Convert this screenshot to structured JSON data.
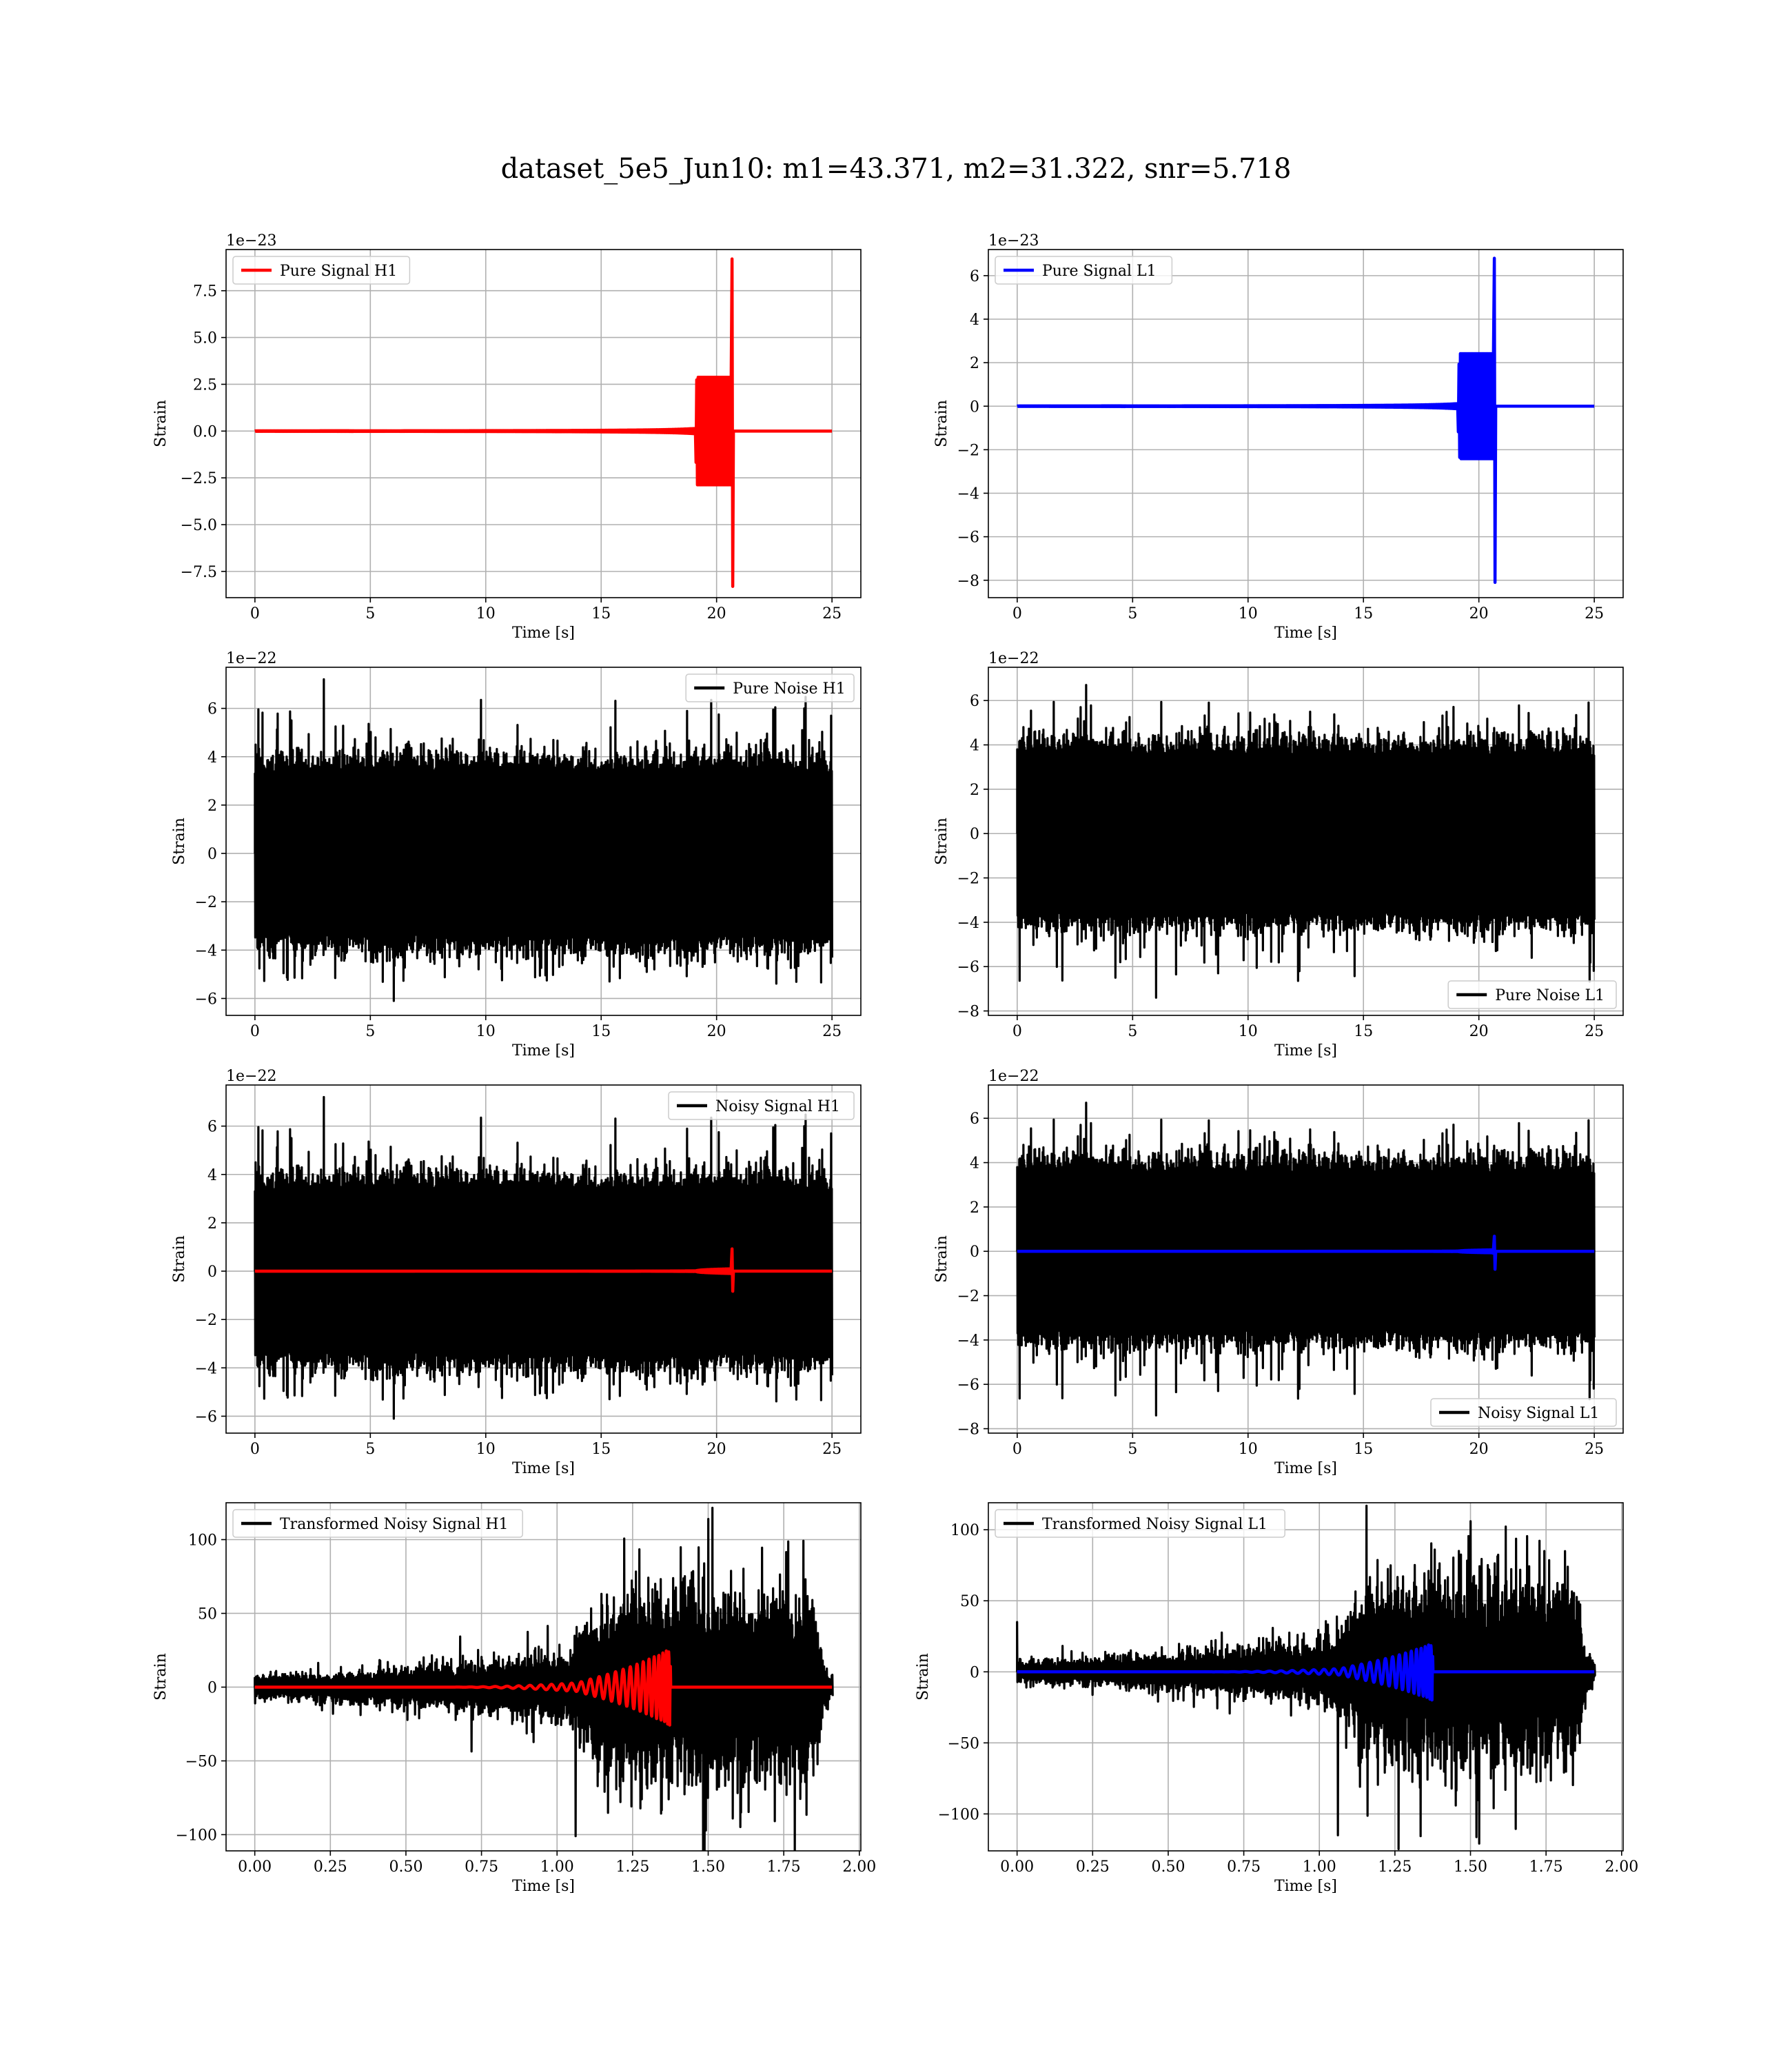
{
  "title": "dataset_5e5_Jun10: m1=43.371, m2=31.322, snr=5.718",
  "colors": {
    "h1_signal": "#ff0000",
    "l1_signal": "#0000ff",
    "noise": "#000000",
    "grid": "#b0b0b0"
  },
  "chart_data": [
    {
      "type": "line",
      "legend": "Pure Signal H1",
      "legend_loc": "upper left",
      "xlabel": "Time [s]",
      "ylabel": "Strain",
      "offset_text": "1e−23",
      "xlim": [
        -1.25,
        26.25
      ],
      "ylim": [
        -8.9,
        9.7
      ],
      "xticks": [
        0,
        5,
        10,
        15,
        20,
        25
      ],
      "xtick_labels": [
        "0",
        "5",
        "10",
        "15",
        "20",
        "25"
      ],
      "yticks": [
        -7.5,
        -5.0,
        -2.5,
        0.0,
        2.5,
        5.0,
        7.5
      ],
      "ytick_labels": [
        "−7.5",
        "−5.0",
        "−2.5",
        "0.0",
        "2.5",
        "5.0",
        "7.5"
      ],
      "grid": true,
      "series": [
        {
          "kind": "chirp",
          "color": "#ff0000",
          "t0": 0,
          "t1": 25,
          "tc": 20.7,
          "ymax": 9.2,
          "ymin": -8.3,
          "late": 2.5
        }
      ]
    },
    {
      "type": "line",
      "legend": "Pure Signal L1",
      "legend_loc": "upper left",
      "xlabel": "Time [s]",
      "ylabel": "Strain",
      "offset_text": "1e−23",
      "xlim": [
        -1.25,
        26.25
      ],
      "ylim": [
        -8.8,
        7.2
      ],
      "xticks": [
        0,
        5,
        10,
        15,
        20,
        25
      ],
      "xtick_labels": [
        "0",
        "5",
        "10",
        "15",
        "20",
        "25"
      ],
      "yticks": [
        -8,
        -6,
        -4,
        -2,
        0,
        2,
        4,
        6
      ],
      "ytick_labels": [
        "−8",
        "−6",
        "−4",
        "−2",
        "0",
        "2",
        "4",
        "6"
      ],
      "grid": true,
      "series": [
        {
          "kind": "chirp",
          "color": "#0000ff",
          "t0": 0,
          "t1": 25,
          "tc": 20.7,
          "ymax": 6.8,
          "ymin": -8.1,
          "late": 2.1
        }
      ]
    },
    {
      "type": "line",
      "legend": "Pure Noise H1",
      "legend_loc": "upper right",
      "xlabel": "Time [s]",
      "ylabel": "Strain",
      "offset_text": "1e−22",
      "xlim": [
        -1.25,
        26.25
      ],
      "ylim": [
        -6.7,
        7.7
      ],
      "xticks": [
        0,
        5,
        10,
        15,
        20,
        25
      ],
      "xtick_labels": [
        "0",
        "5",
        "10",
        "15",
        "20",
        "25"
      ],
      "yticks": [
        -6,
        -4,
        -2,
        0,
        2,
        4,
        6
      ],
      "ytick_labels": [
        "−6",
        "−4",
        "−2",
        "0",
        "2",
        "4",
        "6"
      ],
      "grid": true,
      "series": [
        {
          "kind": "noise",
          "color": "#000000",
          "t0": 0,
          "t1": 25,
          "core": 3.3,
          "max": 7.2,
          "min": -6.1,
          "seed": 11
        }
      ]
    },
    {
      "type": "line",
      "legend": "Pure Noise L1",
      "legend_loc": "lower right",
      "xlabel": "Time [s]",
      "ylabel": "Strain",
      "offset_text": "1e−22",
      "xlim": [
        -1.25,
        26.25
      ],
      "ylim": [
        -8.2,
        7.5
      ],
      "xticks": [
        0,
        5,
        10,
        15,
        20,
        25
      ],
      "xtick_labels": [
        "0",
        "5",
        "10",
        "15",
        "20",
        "25"
      ],
      "yticks": [
        -8,
        -6,
        -4,
        -2,
        0,
        2,
        4,
        6
      ],
      "ytick_labels": [
        "−8",
        "−6",
        "−4",
        "−2",
        "0",
        "2",
        "4",
        "6"
      ],
      "grid": true,
      "series": [
        {
          "kind": "noise",
          "color": "#000000",
          "t0": 0,
          "t1": 25,
          "core": 3.5,
          "max": 6.7,
          "min": -7.4,
          "seed": 23
        }
      ]
    },
    {
      "type": "line",
      "legend": "Noisy Signal H1",
      "legend_loc": "upper right",
      "xlabel": "Time [s]",
      "ylabel": "Strain",
      "offset_text": "1e−22",
      "xlim": [
        -1.25,
        26.25
      ],
      "ylim": [
        -6.7,
        7.7
      ],
      "xticks": [
        0,
        5,
        10,
        15,
        20,
        25
      ],
      "xtick_labels": [
        "0",
        "5",
        "10",
        "15",
        "20",
        "25"
      ],
      "yticks": [
        -6,
        -4,
        -2,
        0,
        2,
        4,
        6
      ],
      "ytick_labels": [
        "−6",
        "−4",
        "−2",
        "0",
        "2",
        "4",
        "6"
      ],
      "grid": true,
      "series": [
        {
          "kind": "noise",
          "color": "#000000",
          "t0": 0,
          "t1": 25,
          "core": 3.3,
          "max": 7.2,
          "min": -6.1,
          "seed": 11
        },
        {
          "kind": "chirp",
          "color": "#ff0000",
          "t0": 0,
          "t1": 25,
          "tc": 20.7,
          "ymax": 0.92,
          "ymin": -0.83,
          "late": 0.25
        }
      ]
    },
    {
      "type": "line",
      "legend": "Noisy Signal L1",
      "legend_loc": "lower right",
      "xlabel": "Time [s]",
      "ylabel": "Strain",
      "offset_text": "1e−22",
      "xlim": [
        -1.25,
        26.25
      ],
      "ylim": [
        -8.2,
        7.5
      ],
      "xticks": [
        0,
        5,
        10,
        15,
        20,
        25
      ],
      "xtick_labels": [
        "0",
        "5",
        "10",
        "15",
        "20",
        "25"
      ],
      "yticks": [
        -8,
        -6,
        -4,
        -2,
        0,
        2,
        4,
        6
      ],
      "ytick_labels": [
        "−8",
        "−6",
        "−4",
        "−2",
        "0",
        "2",
        "4",
        "6"
      ],
      "grid": true,
      "series": [
        {
          "kind": "noise",
          "color": "#000000",
          "t0": 0,
          "t1": 25,
          "core": 3.5,
          "max": 6.7,
          "min": -7.4,
          "seed": 23
        },
        {
          "kind": "chirp",
          "color": "#0000ff",
          "t0": 0,
          "t1": 25,
          "tc": 20.7,
          "ymax": 0.68,
          "ymin": -0.81,
          "late": 0.21
        }
      ]
    },
    {
      "type": "line",
      "legend": "Transformed Noisy Signal H1",
      "legend_loc": "upper left",
      "xlabel": "Time [s]",
      "ylabel": "Strain",
      "xlim": [
        -0.095,
        2.005
      ],
      "ylim": [
        -111,
        125
      ],
      "xticks": [
        0,
        0.25,
        0.5,
        0.75,
        1.0,
        1.25,
        1.5,
        1.75,
        2.0
      ],
      "xtick_labels": [
        "0.00",
        "0.25",
        "0.50",
        "0.75",
        "1.00",
        "1.25",
        "1.50",
        "1.75",
        "2.00"
      ],
      "yticks": [
        -100,
        -50,
        0,
        50,
        100
      ],
      "ytick_labels": [
        "−100",
        "−50",
        "0",
        "50",
        "100"
      ],
      "grid": true,
      "series": [
        {
          "kind": "tnoise",
          "color": "#000000",
          "t0": 0,
          "t1": 1.91,
          "seed": 37,
          "max": 114,
          "min": -101,
          "env_t": [
            0,
            0.2,
            0.5,
            0.75,
            0.9,
            1.05,
            1.1,
            1.15,
            1.45,
            1.6,
            1.85,
            1.88,
            1.91
          ],
          "env_a": [
            6,
            7,
            10,
            13,
            16,
            20,
            32,
            48,
            52,
            50,
            50,
            14,
            4
          ]
        },
        {
          "kind": "tchirp",
          "color": "#ff0000",
          "t0": 0,
          "t1": 1.91,
          "tc": 1.375,
          "amp": 26,
          "start": 0.6
        }
      ]
    },
    {
      "type": "line",
      "legend": "Transformed Noisy Signal L1",
      "legend_loc": "upper left",
      "xlabel": "Time [s]",
      "ylabel": "Strain",
      "xlim": [
        -0.095,
        2.005
      ],
      "ylim": [
        -126,
        119
      ],
      "xticks": [
        0,
        0.25,
        0.5,
        0.75,
        1.0,
        1.25,
        1.5,
        1.75,
        2.0
      ],
      "xtick_labels": [
        "0.00",
        "0.25",
        "0.50",
        "0.75",
        "1.00",
        "1.25",
        "1.50",
        "1.75",
        "2.00"
      ],
      "yticks": [
        -100,
        -50,
        0,
        50,
        100
      ],
      "ytick_labels": [
        "−100",
        "−50",
        "0",
        "50",
        "100"
      ],
      "grid": true,
      "series": [
        {
          "kind": "tnoise",
          "color": "#000000",
          "t0": 0,
          "t1": 1.91,
          "seed": 53,
          "max": 106,
          "min": -115,
          "spike0": 35,
          "env_t": [
            0,
            0.2,
            0.5,
            0.75,
            0.9,
            1.05,
            1.1,
            1.15,
            1.45,
            1.6,
            1.85,
            1.88,
            1.91
          ],
          "env_a": [
            6,
            7,
            10,
            13,
            16,
            20,
            32,
            48,
            52,
            50,
            50,
            14,
            4
          ]
        },
        {
          "kind": "tchirp",
          "color": "#0000ff",
          "t0": 0,
          "t1": 1.91,
          "tc": 1.375,
          "amp": 20,
          "start": 0.6
        }
      ]
    }
  ]
}
